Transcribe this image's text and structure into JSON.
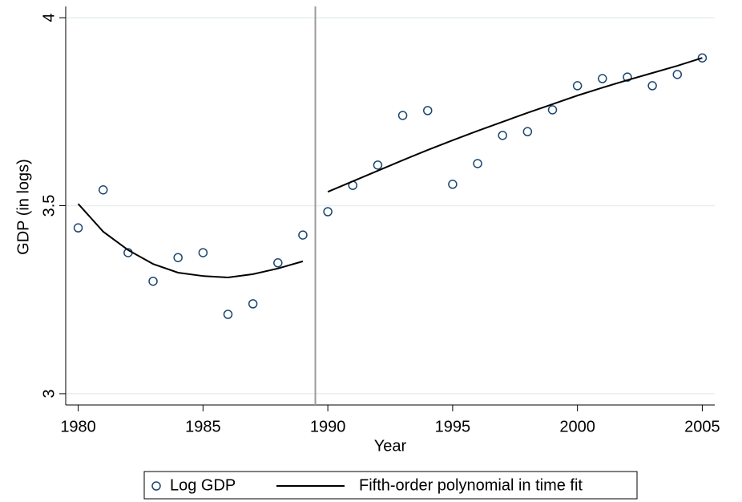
{
  "chart_data": {
    "type": "scatter",
    "x_label": "Year",
    "y_label": "GDP (in logs)",
    "xlim": [
      1979.5,
      2005.5
    ],
    "ylim": [
      2.97,
      4.03
    ],
    "xticks": [
      1980,
      1985,
      1990,
      1995,
      2000,
      2005
    ],
    "yticks": [
      3,
      3.5,
      4
    ],
    "grid": true,
    "legend": "bottom",
    "cutoff": 1989.5,
    "cutoff_color": "#9a9a9a",
    "series": [
      {
        "name": "Log GDP",
        "kind": "markers",
        "color": "#1a476f",
        "x": [
          1980,
          1981,
          1982,
          1983,
          1984,
          1985,
          1986,
          1987,
          1988,
          1989,
          1990,
          1991,
          1992,
          1993,
          1994,
          1995,
          1996,
          1997,
          1998,
          1999,
          2000,
          2001,
          2002,
          2003,
          2004,
          2005
        ],
        "values": [
          3.441,
          3.542,
          3.375,
          3.299,
          3.362,
          3.375,
          3.211,
          3.239,
          3.348,
          3.422,
          3.484,
          3.554,
          3.608,
          3.74,
          3.753,
          3.557,
          3.612,
          3.687,
          3.697,
          3.755,
          3.819,
          3.838,
          3.842,
          3.819,
          3.849,
          3.893
        ]
      },
      {
        "name": "Fifth-order polynomial in time fit",
        "kind": "line",
        "color": "#000000",
        "x": [
          1980,
          1981,
          1982,
          1983,
          1984,
          1985,
          1986,
          1987,
          1988,
          1989,
          1989.5,
          1990,
          1991,
          1992,
          1993,
          1994,
          1995,
          1996,
          1997,
          1998,
          1999,
          2000,
          2001,
          2002,
          2003,
          2004,
          2005
        ],
        "values": [
          3.505,
          3.431,
          3.382,
          3.345,
          3.322,
          3.313,
          3.309,
          3.318,
          3.333,
          3.352,
          null,
          3.537,
          3.565,
          3.593,
          3.621,
          3.648,
          3.674,
          3.699,
          3.723,
          3.747,
          3.77,
          3.793,
          3.814,
          3.834,
          3.853,
          3.872,
          3.893
        ]
      }
    ]
  }
}
